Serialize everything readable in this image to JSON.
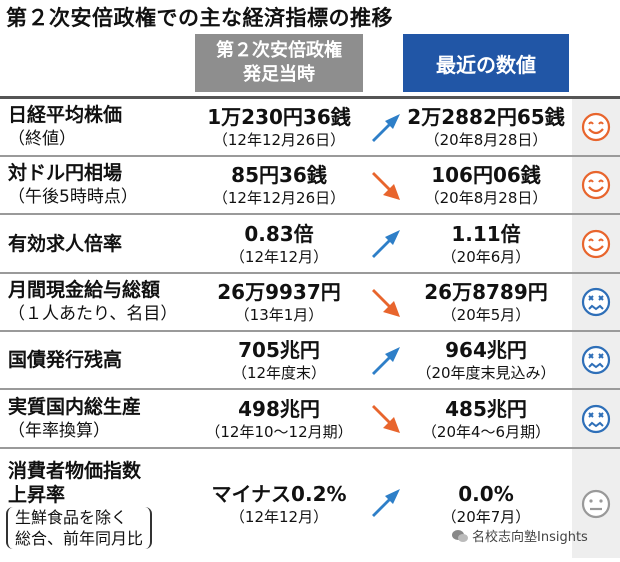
{
  "title": "第２次安倍政権での主な経済指標の推移",
  "headers": {
    "start_line1": "第２次安倍政権",
    "start_line2": "発足当時",
    "recent": "最近の数値"
  },
  "colors": {
    "up_arrow": "#2e7fc8",
    "down_arrow": "#e8652d",
    "happy_face": "#e8652d",
    "sad_face": "#2e6fb8",
    "neutral_face": "#999999",
    "header_start": "#8e8e8e",
    "header_recent": "#2156a6"
  },
  "rows": [
    {
      "label": "日経平均株価",
      "sub": "（終値）",
      "start_value": "1万230円36銭",
      "start_date": "（12年12月26日）",
      "recent_value": "2万2882円65銭",
      "recent_date": "（20年8月28日）",
      "arrow": "up-arrow-icon",
      "face": "smiley-face-icon"
    },
    {
      "label": "対ドル円相場",
      "sub": "（午後5時時点）",
      "start_value": "85円36銭",
      "start_date": "（12年12月26日）",
      "recent_value": "106円06銭",
      "recent_date": "（20年8月28日）",
      "arrow": "down-arrow-icon",
      "face": "smiley-face-icon"
    },
    {
      "label": "有効求人倍率",
      "start_value": "0.83倍",
      "start_date": "（12年12月）",
      "recent_value": "1.11倍",
      "recent_date": "（20年6月）",
      "arrow": "up-arrow-icon",
      "face": "smiley-face-icon"
    },
    {
      "label": "月間現金給与総額",
      "sub": "（１人あたり、名目）",
      "start_value": "26万9937円",
      "start_date": "（13年1月）",
      "recent_value": "26万8789円",
      "recent_date": "（20年5月）",
      "arrow": "down-arrow-icon",
      "face": "sad-face-icon"
    },
    {
      "label": "国債発行残高",
      "start_value": "705兆円",
      "start_date": "（12年度末）",
      "recent_value": "964兆円",
      "recent_date": "（20年度末見込み）",
      "arrow": "up-arrow-icon",
      "face": "sad-face-icon"
    },
    {
      "label": "実質国内総生産",
      "sub": "（年率換算）",
      "start_value": "498兆円",
      "start_date": "（12年10～12月期）",
      "recent_value": "485兆円",
      "recent_date": "（20年4～6月期）",
      "arrow": "down-arrow-icon",
      "face": "sad-face-icon"
    },
    {
      "label": "消費者物価指数",
      "label2": "上昇率",
      "paren1": "生鮮食品を除く",
      "paren2": "総合、前年同月比",
      "start_value": "マイナス0.2%",
      "start_date": "（12年12月）",
      "recent_value": "0.0%",
      "recent_date": "（20年7月）",
      "arrow": "up-arrow-icon",
      "face": "neutral-face-icon"
    }
  ],
  "watermark": "名校志向塾Insights"
}
